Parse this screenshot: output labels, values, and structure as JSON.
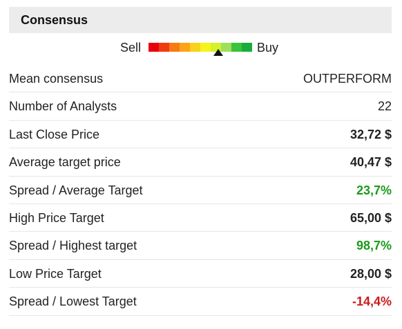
{
  "header": {
    "title": "Consensus"
  },
  "gauge": {
    "left_label": "Sell",
    "right_label": "Buy"
  },
  "table": {
    "rows": [
      [
        "Mean consensus",
        "OUTPERFORM"
      ],
      [
        "Number of Analysts",
        "22"
      ],
      [
        "Last Close Price",
        "32,72 $"
      ],
      [
        "Average target price",
        "40,47 $"
      ],
      [
        "Spread / Average Target",
        "23,7%"
      ],
      [
        "High Price Target",
        "65,00 $"
      ],
      [
        "Spread / Highest target",
        "98,7%"
      ],
      [
        "Low Price Target",
        "28,00 $"
      ],
      [
        "Spread / Lowest Target",
        "-14,4%"
      ]
    ]
  }
}
